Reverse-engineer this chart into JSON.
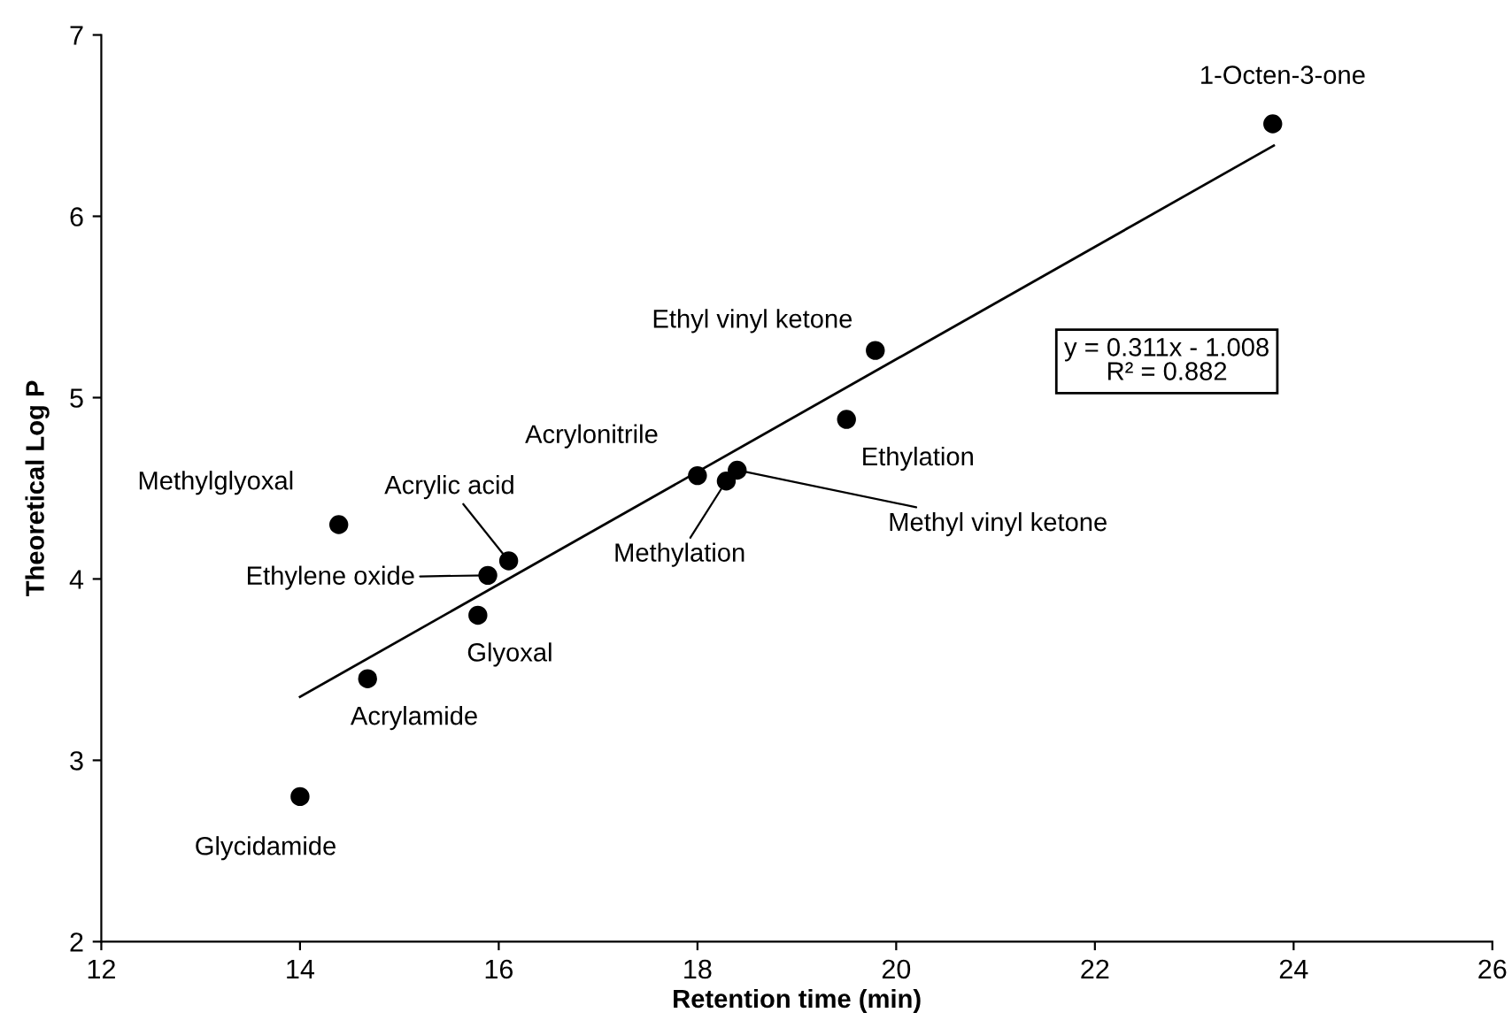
{
  "chart_data": {
    "type": "scatter",
    "xlabel": "Retention time (min)",
    "ylabel": "Theoretical Log P",
    "xlim": [
      12,
      26
    ],
    "xticks": [
      12,
      14,
      16,
      18,
      20,
      22,
      24,
      26
    ],
    "ylim": [
      2,
      7
    ],
    "yticks": [
      2,
      3,
      4,
      5,
      6,
      7
    ],
    "grid": false,
    "legend": false,
    "marker": "circle",
    "series": [
      {
        "color": "#000000",
        "x": [
          14.0,
          14.39,
          14.68,
          15.79,
          15.89,
          16.1,
          18.0,
          18.29,
          18.4,
          19.5,
          19.79,
          23.79
        ],
        "values": [
          2.8,
          4.3,
          3.45,
          3.8,
          4.02,
          4.1,
          4.57,
          4.54,
          4.6,
          4.88,
          5.26,
          6.51
        ]
      },
      {
        "type": "line",
        "color": "#000000",
        "marker": "none",
        "line_style": "solid",
        "x": [
          14.0,
          23.8
        ],
        "values": [
          3.35,
          6.39
        ]
      }
    ],
    "annotations": [
      {
        "text": "Glycidamide",
        "x": 14.0,
        "y": 2.8
      },
      {
        "text": "Methylglyoxal",
        "x": 14.39,
        "y": 4.3
      },
      {
        "text": "Acrylamide",
        "x": 14.68,
        "y": 3.45
      },
      {
        "text": "Glyoxal",
        "x": 15.79,
        "y": 3.8
      },
      {
        "text": "Ethylene oxide",
        "x": 15.89,
        "y": 4.02
      },
      {
        "text": "Acrylic acid",
        "x": 16.1,
        "y": 4.1
      },
      {
        "text": "Acrylonitrile",
        "x": 18.0,
        "y": 4.57
      },
      {
        "text": "Methylation",
        "x": 18.29,
        "y": 4.54
      },
      {
        "text": "Methyl vinyl ketone",
        "x": 18.4,
        "y": 4.6
      },
      {
        "text": "Ethylation",
        "x": 19.5,
        "y": 4.88
      },
      {
        "text": "Ethyl vinyl ketone",
        "x": 19.79,
        "y": 5.26
      },
      {
        "text": "1-Octen-3-one",
        "x": 23.79,
        "y": 6.51
      },
      "y = 0.311x - 1.008\nR² = 0.882"
    ]
  }
}
